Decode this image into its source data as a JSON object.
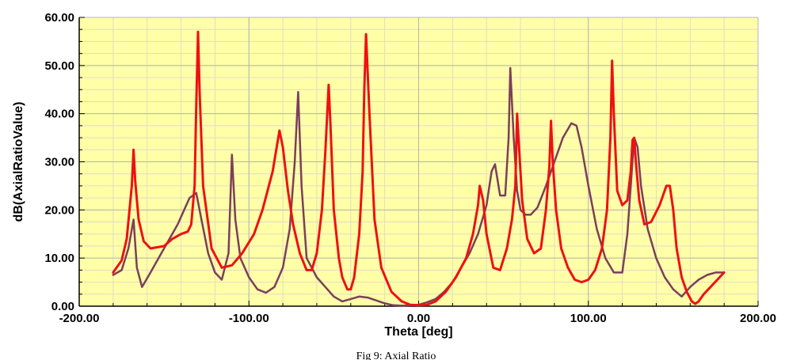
{
  "chart_data": {
    "type": "line",
    "title": "",
    "caption": "Fig 9: Axial Ratio",
    "xlabel": "Theta [deg]",
    "ylabel": "dB(AxialRatioValue)",
    "xlim": [
      -200,
      200
    ],
    "ylim": [
      0,
      60
    ],
    "x_ticks": [
      -200,
      -100,
      0,
      100,
      200
    ],
    "x_tick_labels": [
      "-200.00",
      "-100.00",
      "0.00",
      "100.00",
      "200.00"
    ],
    "y_ticks": [
      0,
      10,
      20,
      30,
      40,
      50,
      60
    ],
    "y_tick_labels": [
      "0.00",
      "10.00",
      "20.00",
      "30.00",
      "40.00",
      "50.00",
      "60.00"
    ],
    "grid": true,
    "plot_background": "#ffffa8",
    "series": [
      {
        "color": "#7b3f5a",
        "x": [
          -180,
          -175,
          -171,
          -168,
          -166,
          -163,
          -158,
          -150,
          -142,
          -135,
          -131,
          -128,
          -124,
          -120,
          -116,
          -112,
          -110,
          -108,
          -105,
          -100,
          -95,
          -90,
          -85,
          -80,
          -76,
          -73,
          -71,
          -69,
          -66,
          -60,
          -55,
          -50,
          -45,
          -40,
          -35,
          -30,
          -25,
          -20,
          -15,
          -10,
          -5,
          0,
          5,
          10,
          15,
          20,
          25,
          30,
          35,
          40,
          43,
          45,
          48,
          51,
          53,
          54,
          56,
          58,
          60,
          63,
          66,
          70,
          75,
          80,
          85,
          90,
          93,
          96,
          100,
          105,
          110,
          115,
          120,
          123,
          125,
          127,
          129,
          131,
          135,
          140,
          145,
          150,
          155,
          160,
          165,
          170,
          175,
          180
        ],
        "y": [
          6.5,
          7.5,
          12.0,
          18.0,
          8.0,
          4.0,
          7.0,
          12.0,
          17.0,
          22.5,
          23.5,
          18.0,
          11.0,
          7.0,
          5.5,
          11.0,
          31.5,
          18.0,
          10.0,
          6.0,
          3.5,
          2.8,
          4.0,
          8.0,
          16.0,
          30.0,
          44.5,
          25.0,
          10.0,
          6.0,
          4.0,
          2.0,
          1.0,
          1.5,
          2.0,
          1.8,
          1.2,
          0.6,
          0.2,
          0.1,
          0.2,
          0.3,
          0.8,
          1.5,
          3.0,
          5.0,
          8.0,
          11.0,
          15.0,
          21.0,
          28.0,
          29.5,
          23.0,
          23.0,
          35.0,
          49.5,
          35.0,
          24.0,
          20.0,
          19.0,
          19.0,
          20.5,
          25.0,
          30.0,
          35.0,
          38.0,
          37.5,
          33.0,
          25.0,
          16.0,
          10.0,
          7.0,
          7.0,
          15.0,
          25.0,
          35.0,
          33.0,
          25.0,
          16.0,
          10.0,
          6.0,
          3.5,
          2.0,
          4.0,
          5.5,
          6.5,
          7.0,
          7.0
        ]
      },
      {
        "color": "#ee1111",
        "x": [
          -180,
          -175,
          -172,
          -169,
          -168,
          -167,
          -165,
          -162,
          -158,
          -150,
          -145,
          -140,
          -136,
          -134,
          -132,
          -131,
          -130,
          -129,
          -127,
          -122,
          -116,
          -110,
          -104,
          -97,
          -92,
          -86,
          -82,
          -80,
          -77,
          -74,
          -70,
          -66,
          -63,
          -60,
          -57,
          -55,
          -53,
          -52,
          -50,
          -47,
          -45,
          -42,
          -40,
          -38,
          -35,
          -33,
          -32,
          -31,
          -29,
          -26,
          -22,
          -16,
          -10,
          -5,
          0,
          5,
          10,
          16,
          22,
          28,
          32,
          35,
          36,
          38,
          40,
          44,
          48,
          52,
          55,
          57,
          58,
          59,
          61,
          64,
          68,
          72,
          75,
          77,
          78,
          79,
          81,
          84,
          88,
          92,
          96,
          100,
          104,
          108,
          111,
          113,
          114,
          115,
          117,
          120,
          123,
          125,
          126,
          127,
          128,
          130,
          133,
          137,
          142,
          146,
          148,
          150,
          152,
          155,
          158,
          161,
          163,
          165,
          168,
          172,
          176,
          180
        ],
        "y": [
          7.0,
          9.5,
          14.0,
          25.0,
          32.5,
          26.0,
          18.0,
          13.5,
          12.0,
          12.5,
          14.0,
          15.0,
          15.5,
          17.0,
          25.0,
          42.0,
          57.0,
          44.0,
          25.0,
          12.0,
          8.0,
          8.5,
          11.0,
          15.0,
          20.0,
          28.0,
          36.5,
          33.0,
          24.0,
          17.0,
          11.0,
          7.5,
          7.5,
          11.0,
          20.0,
          32.0,
          46.0,
          38.0,
          20.0,
          10.0,
          6.0,
          3.5,
          3.5,
          6.0,
          15.0,
          28.0,
          45.0,
          56.5,
          40.0,
          18.0,
          8.0,
          3.0,
          1.0,
          0.3,
          0.2,
          0.3,
          1.0,
          3.0,
          6.0,
          10.0,
          15.0,
          21.0,
          25.0,
          22.0,
          15.0,
          8.0,
          7.5,
          12.0,
          18.0,
          25.0,
          40.0,
          34.0,
          22.0,
          14.0,
          11.0,
          12.0,
          20.0,
          29.0,
          38.5,
          30.0,
          20.0,
          12.0,
          8.0,
          5.5,
          5.0,
          5.5,
          7.5,
          12.0,
          20.0,
          35.0,
          51.0,
          40.0,
          24.0,
          21.0,
          22.0,
          28.0,
          34.5,
          35.0,
          30.0,
          22.0,
          17.0,
          17.5,
          21.0,
          25.0,
          25.0,
          20.0,
          12.0,
          6.0,
          3.0,
          1.0,
          0.5,
          1.0,
          2.5,
          4.0,
          5.5,
          7.0
        ]
      }
    ]
  }
}
